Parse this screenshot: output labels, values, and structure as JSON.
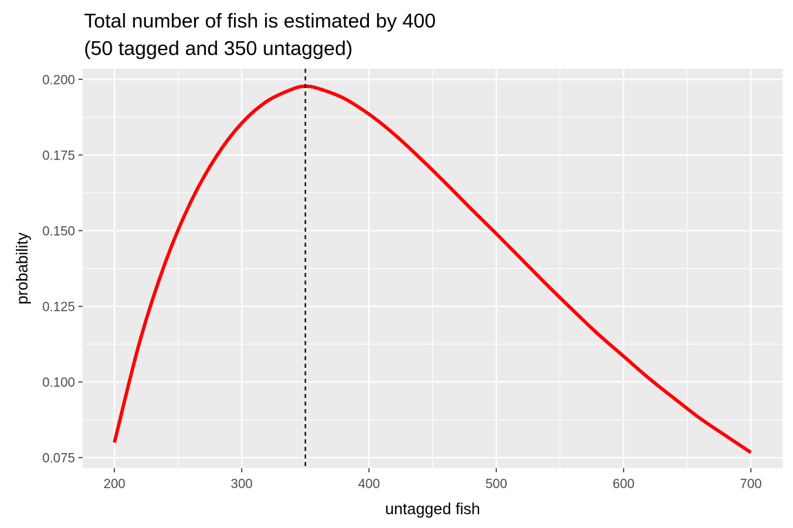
{
  "chart_data": {
    "type": "line",
    "title_lines": [
      "Total number of fish is estimated by 400",
      "(50 tagged and 350 untagged)"
    ],
    "xlabel": "untagged fish",
    "ylabel": "probability",
    "xlim": [
      175,
      725
    ],
    "ylim": [
      0.0715,
      0.2035
    ],
    "x_ticks": [
      200,
      300,
      400,
      500,
      600,
      700
    ],
    "x_tick_labels": [
      "200",
      "300",
      "400",
      "500",
      "600",
      "700"
    ],
    "y_ticks": [
      0.075,
      0.1,
      0.125,
      0.15,
      0.175,
      0.2
    ],
    "y_tick_labels": [
      "0.075",
      "0.100",
      "0.125",
      "0.150",
      "0.175",
      "0.200"
    ],
    "grid": true,
    "background": "#ebebeb",
    "series": [
      {
        "color": "#ff0000",
        "x": [
          200,
          220,
          240,
          260,
          280,
          300,
          320,
          340,
          350,
          360,
          380,
          400,
          420,
          440,
          460,
          480,
          500,
          520,
          540,
          560,
          580,
          600,
          620,
          640,
          660,
          680,
          700
        ],
        "y": [
          0.08,
          0.1135,
          0.1395,
          0.1595,
          0.1745,
          0.1855,
          0.1928,
          0.1968,
          0.1977,
          0.197,
          0.1938,
          0.1885,
          0.1818,
          0.174,
          0.1658,
          0.1573,
          0.149,
          0.1405,
          0.132,
          0.1238,
          0.1158,
          0.1085,
          0.1012,
          0.0945,
          0.088,
          0.0823,
          0.0767
        ]
      }
    ],
    "vline": {
      "x": 350,
      "style": "dashed",
      "color": "#000000"
    }
  }
}
